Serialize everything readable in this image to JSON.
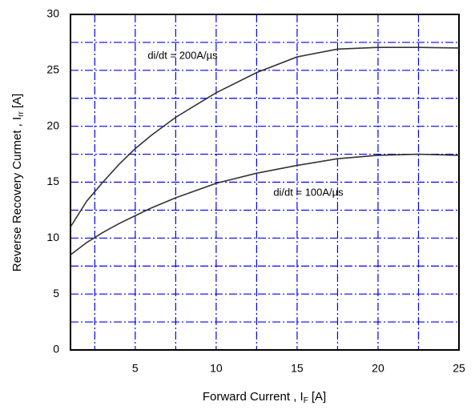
{
  "chart_data": {
    "type": "line",
    "xlabel": {
      "text": "Forward Current , I",
      "sub": "F",
      "unit": "[A]"
    },
    "ylabel": {
      "text": "Reverse Recovery Curmet , I",
      "sub": "rr",
      "unit": "[A]"
    },
    "x": [
      1,
      2,
      3,
      4,
      5,
      6,
      7.5,
      10,
      12.5,
      15,
      17.5,
      20,
      22.5,
      25
    ],
    "series": [
      {
        "name": "di/dt = 200A/µs",
        "color": "#333333",
        "values": [
          11,
          13.3,
          15.0,
          16.6,
          18.0,
          19.2,
          20.8,
          23.0,
          24.8,
          26.2,
          26.9,
          27.05,
          27.05,
          27.0
        ]
      },
      {
        "name": "di/dt = 100A/µs",
        "color": "#333333",
        "values": [
          8.5,
          9.6,
          10.5,
          11.3,
          12.0,
          12.7,
          13.6,
          14.9,
          15.8,
          16.5,
          17.1,
          17.4,
          17.5,
          17.4
        ]
      }
    ],
    "xlim": [
      1,
      25
    ],
    "ylim": [
      0,
      30
    ],
    "xticks": [
      5,
      10,
      15,
      20,
      25
    ],
    "yticks": [
      0,
      5,
      10,
      15,
      20,
      25,
      30
    ],
    "x_minor_ticks": [
      2.5,
      7.5,
      12.5,
      17.5,
      22.5
    ],
    "y_minor_ticks": [
      2.5,
      7.5,
      12.5,
      17.5,
      22.5,
      27.5
    ],
    "grid": true,
    "grid_color": "#0000ff"
  }
}
